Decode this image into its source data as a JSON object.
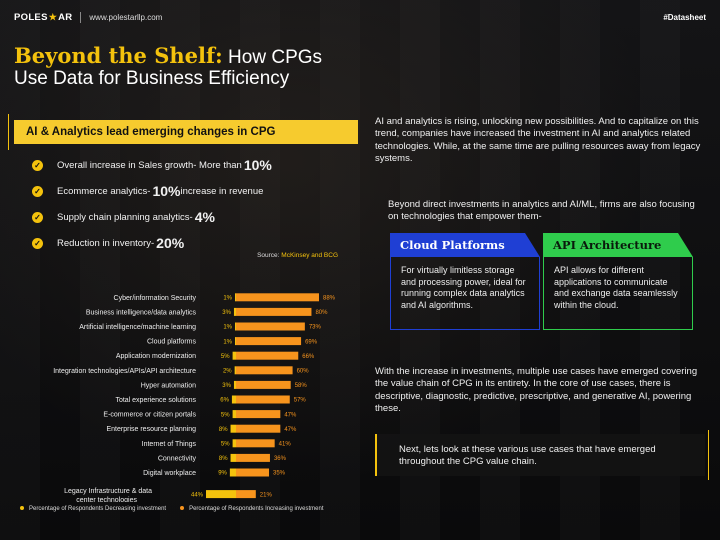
{
  "header": {
    "brand_pre": "POLES",
    "brand_post": "AR",
    "website": "www.polestarllp.com",
    "tag": "#Datasheet"
  },
  "title": {
    "highlight": "Beyond the Shelf:",
    "rest_line1": " How CPGs",
    "line2": "Use Data for Business Efficiency"
  },
  "section_heading": "AI & Analytics lead emerging changes in CPG",
  "bullets": [
    {
      "text": "Overall increase in Sales growth- More than ",
      "value": "10%",
      "suffix": ""
    },
    {
      "text": "Ecommerce analytics- ",
      "value": "10%",
      "suffix": " increase in revenue"
    },
    {
      "text": "Supply chain planning analytics- ",
      "value": "4%",
      "suffix": ""
    },
    {
      "text": "Reduction in inventory- ",
      "value": "20%",
      "suffix": ""
    }
  ],
  "source": {
    "label": "Source: ",
    "value": "McKinsey and BCG"
  },
  "chart_data": {
    "type": "bar",
    "orientation": "horizontal-diverging",
    "categories": [
      "Cyber/information Security",
      "Business intelligence/data analytics",
      "Artificial intelligence/machine learning",
      "Cloud platforms",
      "Application modernization",
      "Integration technologies/APIs/API architecture",
      "Hyper automation",
      "Total experience solutions",
      "E-commerce or citizen portals",
      "Enterprise resource planning",
      "Internet of Things",
      "Connectivity",
      "Digital workplace",
      "Legacy Infrastructure & data center technologies"
    ],
    "series": [
      {
        "name": "Percentage of Respondents Decreasing investment",
        "color": "#f4c20d",
        "values": [
          1,
          3,
          1,
          1,
          5,
          2,
          3,
          6,
          5,
          8,
          5,
          8,
          9,
          44
        ]
      },
      {
        "name": "Percentage of Respondents Increasing investment",
        "color": "#f7941d",
        "values": [
          88,
          80,
          73,
          69,
          66,
          60,
          58,
          57,
          47,
          47,
          41,
          36,
          35,
          21
        ]
      }
    ],
    "unit": "%"
  },
  "paragraphs": {
    "intro": "AI and analytics is rising, unlocking new possibilities. And to capitalize on this trend, companies have increased the investment in AI and analytics related technologies. While, at the same time are pulling resources away from legacy systems.",
    "beyond": "Beyond direct investments in analytics and AI/ML, firms are also focusing on technologies that empower them-",
    "usecases": "With the increase in investments, multiple use cases have emerged covering the value chain of CPG in its entirety. In the core of use cases, there is descriptive, diagnostic, predictive, prescriptive, and generative AI, powering these.",
    "callout": "Next, lets look at these various use cases that have emerged throughout the CPG value chain."
  },
  "cards": [
    {
      "title": "Cloud Platforms",
      "body": "For virtually limitless storage and processing power, ideal for running complex data analytics and AI algorithms."
    },
    {
      "title": "API Architecture",
      "body": "API allows for different applications to communicate and exchange data seamlessly within the cloud."
    }
  ]
}
